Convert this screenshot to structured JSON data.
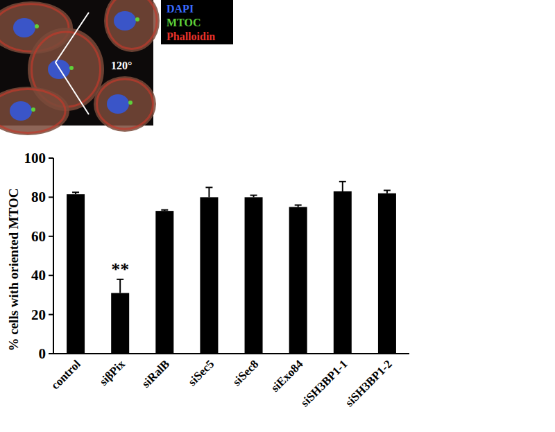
{
  "chart_data": {
    "type": "bar",
    "y_label": "% cells with oriented MTOC",
    "categories": [
      "control",
      "siβPix",
      "siRalB",
      "siSec5",
      "siSec8",
      "siExo84",
      "siSH3BP1-1",
      "siSH3BP1-2"
    ],
    "values": [
      81.5,
      31,
      73,
      80,
      80,
      75,
      83,
      82
    ],
    "errors": [
      1,
      7,
      0.5,
      5,
      1,
      1,
      5,
      1.5
    ],
    "color": "#000000",
    "ylim": [
      0,
      100
    ],
    "yticks": [
      0,
      20,
      40,
      60,
      80,
      100
    ],
    "grid": false,
    "annotations": [
      {
        "text": "**",
        "category": "siβPix"
      }
    ],
    "inset_labels": [
      {
        "text": "DAPI",
        "color": "#3a6cff"
      },
      {
        "text": "MTOC",
        "color": "#5fd13a"
      },
      {
        "text": "Phalloidin",
        "color": "#e8322a"
      }
    ],
    "inset_annotation": "120°"
  }
}
